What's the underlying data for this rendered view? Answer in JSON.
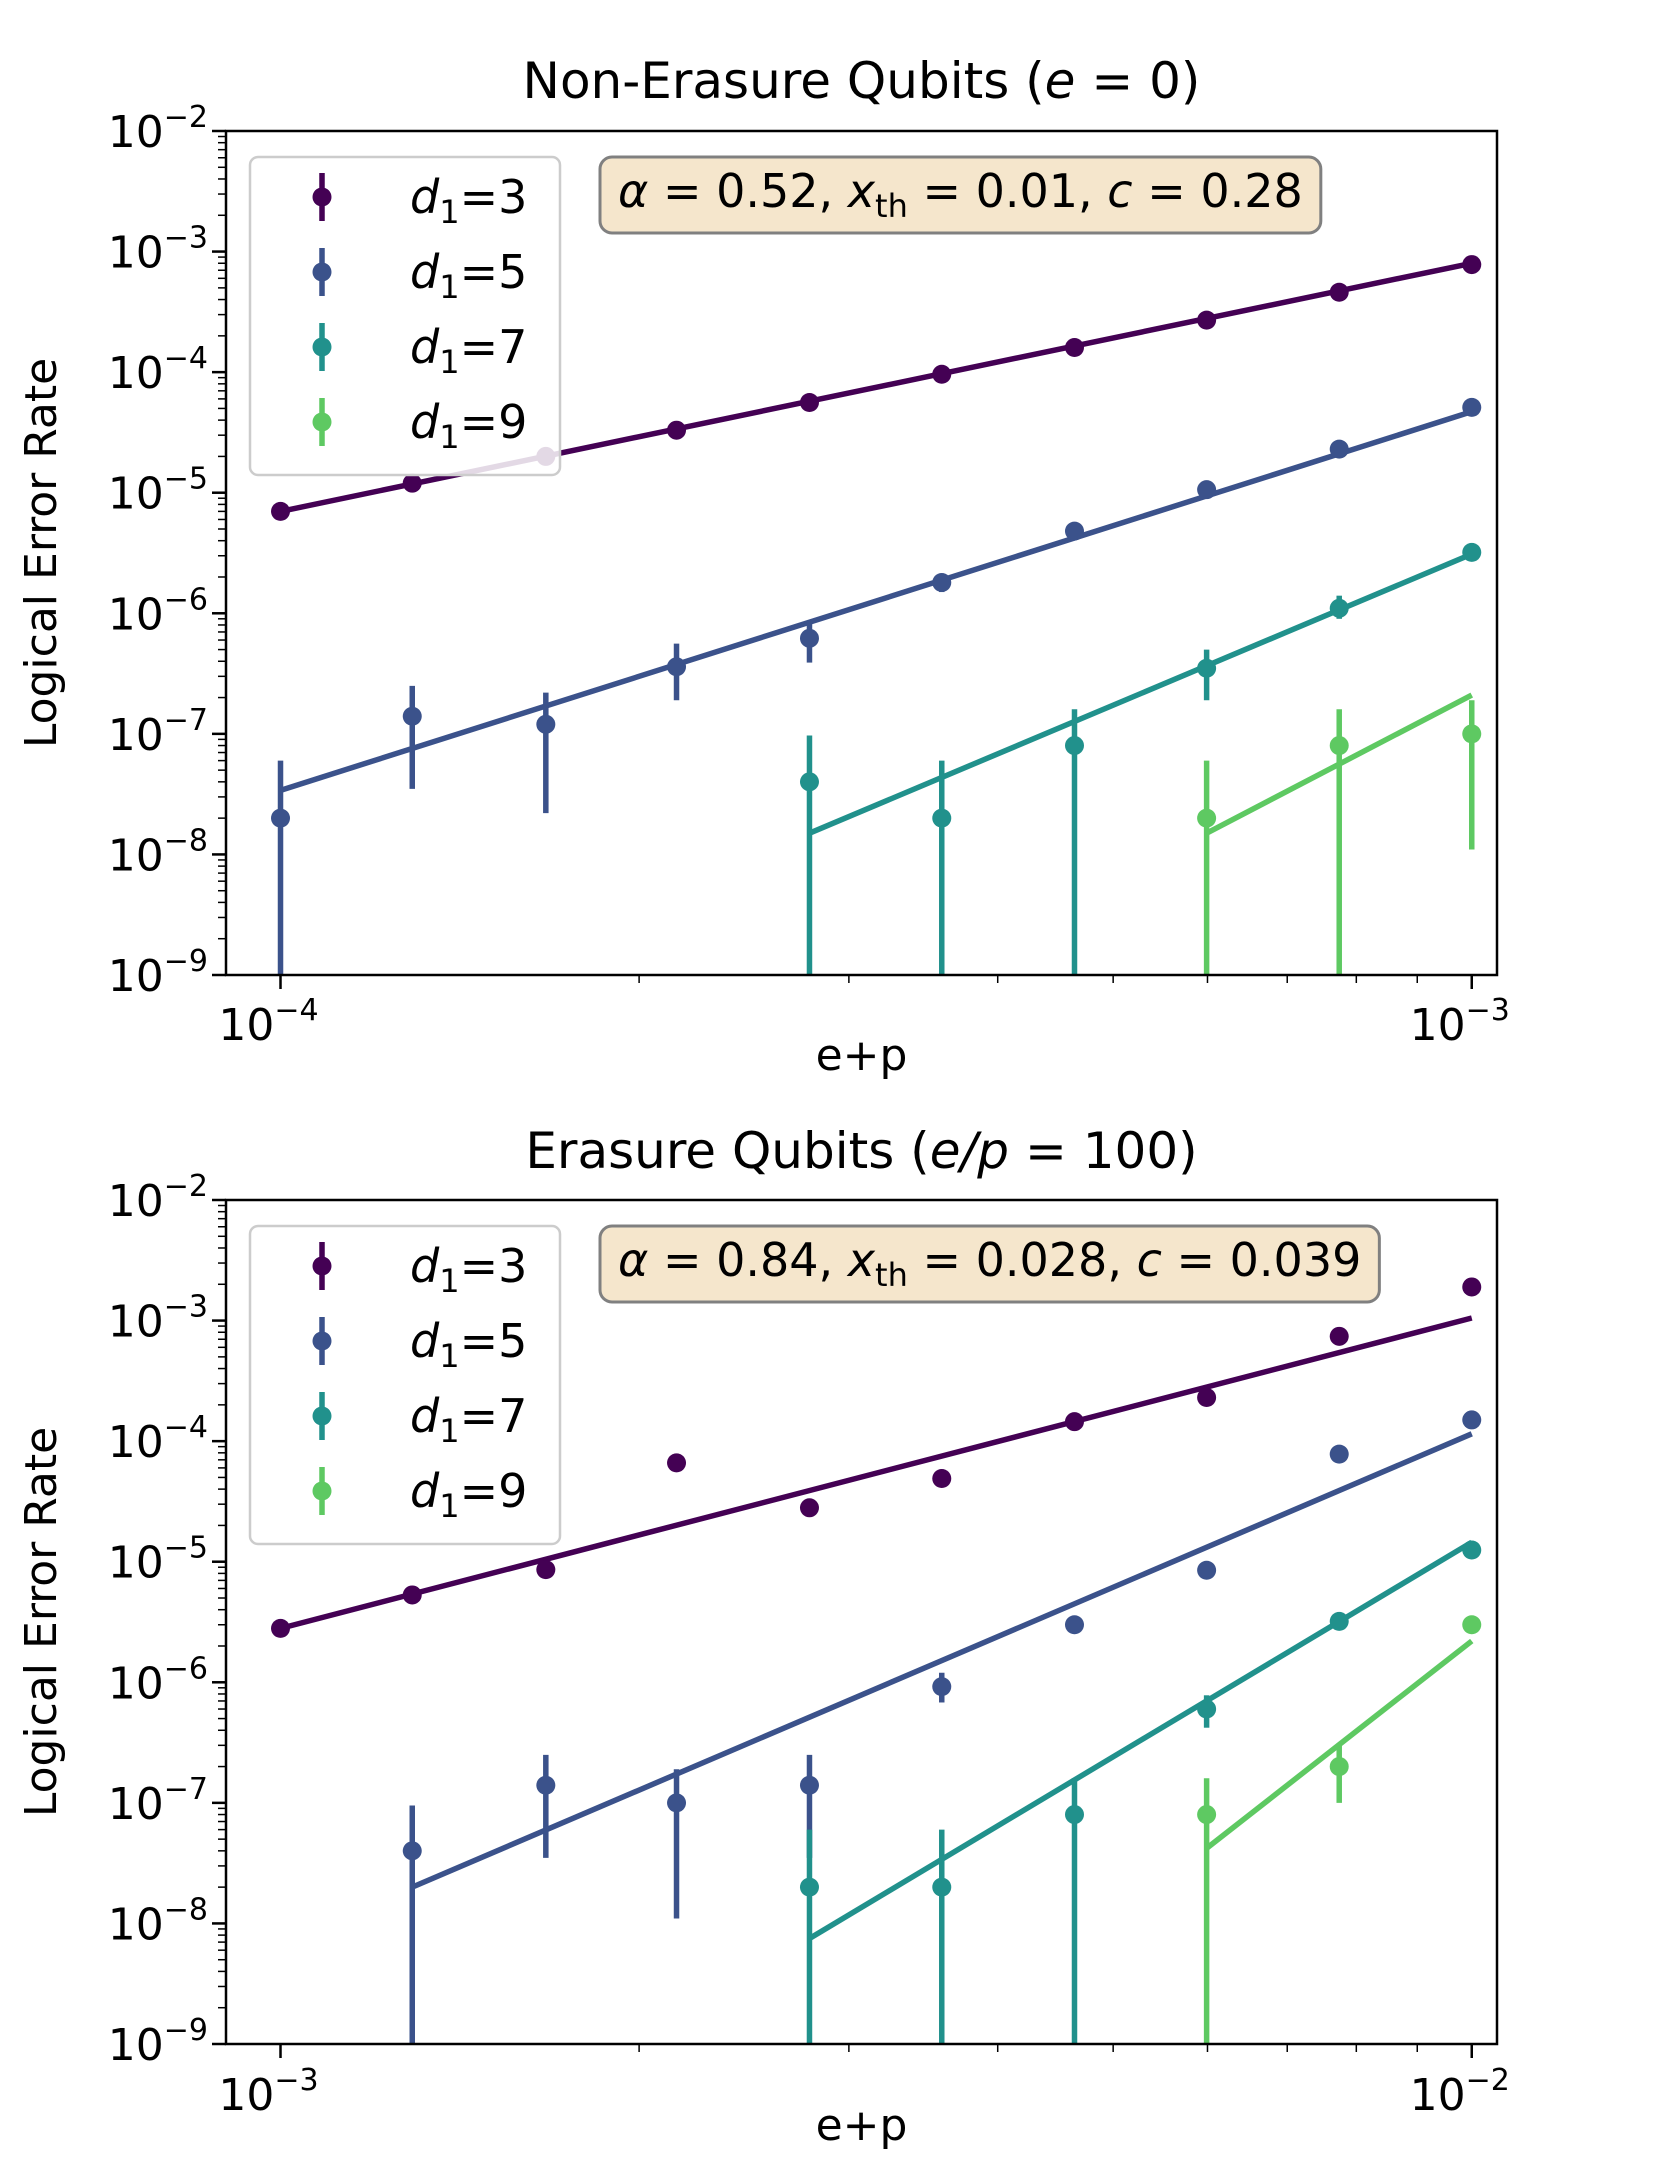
{
  "chart_data": [
    {
      "type": "scatter",
      "title": "Non-Erasure Qubits (e = 0)",
      "title_parts": {
        "prefix": "Non-Erasure Qubits (",
        "var": "e",
        "rel": " = 0",
        "suffix": ")"
      },
      "xlabel": "e+p",
      "ylabel": "Logical Error Rate",
      "xscale": "log",
      "yscale": "log",
      "xlim": [
        9e-05,
        0.00105
      ],
      "ylim": [
        1e-09,
        0.01
      ],
      "xticks": [
        {
          "base": "10",
          "exp": "−4",
          "value": 0.0001
        },
        {
          "base": "10",
          "exp": "−3",
          "value": 0.001
        }
      ],
      "yticks": [
        {
          "base": "10",
          "exp": "−9",
          "value": 1e-09
        },
        {
          "base": "10",
          "exp": "−8",
          "value": 1e-08
        },
        {
          "base": "10",
          "exp": "−7",
          "value": 1e-07
        },
        {
          "base": "10",
          "exp": "−6",
          "value": 1e-06
        },
        {
          "base": "10",
          "exp": "−5",
          "value": 1e-05
        },
        {
          "base": "10",
          "exp": "−4",
          "value": 0.0001
        },
        {
          "base": "10",
          "exp": "−3",
          "value": 0.001
        },
        {
          "base": "10",
          "exp": "−2",
          "value": 0.01
        }
      ],
      "annotation": {
        "alpha": "0.52",
        "xth": "0.01",
        "c": "0.28"
      },
      "legend_position": "upper-left",
      "series": [
        {
          "name": "d1=3",
          "d": "3",
          "color": "#440154",
          "points": [
            {
              "x": 0.0001,
              "y": 7e-06
            },
            {
              "x": 0.000129,
              "y": 1.2e-05
            },
            {
              "x": 0.000167,
              "y": 2e-05
            },
            {
              "x": 0.000215,
              "y": 3.3e-05
            },
            {
              "x": 0.000278,
              "y": 5.6e-05
            },
            {
              "x": 0.000359,
              "y": 9.6e-05
            },
            {
              "x": 0.000464,
              "y": 0.00016
            },
            {
              "x": 0.000599,
              "y": 0.00027
            },
            {
              "x": 0.000774,
              "y": 0.00046
            },
            {
              "x": 0.001,
              "y": 0.00078
            }
          ],
          "fit": [
            {
              "x": 0.0001,
              "y": 7e-06
            },
            {
              "x": 0.001,
              "y": 0.0008
            }
          ]
        },
        {
          "name": "d1=5",
          "d": "5",
          "color": "#3b528b",
          "points": [
            {
              "x": 0.0001,
              "y": 2e-08,
              "lo": 1e-09,
              "hi": 6e-08
            },
            {
              "x": 0.000129,
              "y": 1.4e-07,
              "lo": 3.5e-08,
              "hi": 2.5e-07
            },
            {
              "x": 0.000167,
              "y": 1.2e-07,
              "lo": 2.2e-08,
              "hi": 2.2e-07
            },
            {
              "x": 0.000215,
              "y": 3.6e-07,
              "lo": 1.9e-07,
              "hi": 5.6e-07
            },
            {
              "x": 0.000278,
              "y": 6.2e-07,
              "lo": 3.9e-07,
              "hi": 8.5e-07
            },
            {
              "x": 0.000359,
              "y": 1.8e-06,
              "lo": 1.5e-06,
              "hi": 2.1e-06
            },
            {
              "x": 0.000464,
              "y": 4.8e-06
            },
            {
              "x": 0.000599,
              "y": 1.06e-05
            },
            {
              "x": 0.000774,
              "y": 2.3e-05
            },
            {
              "x": 0.001,
              "y": 5.1e-05
            }
          ],
          "fit": [
            {
              "x": 0.0001,
              "y": 3.4e-08
            },
            {
              "x": 0.001,
              "y": 4.7e-05
            }
          ]
        },
        {
          "name": "d1=7",
          "d": "7",
          "color": "#21918c",
          "points": [
            {
              "x": 0.000278,
              "y": 4e-08,
              "lo": 1e-09,
              "hi": 9.7e-08
            },
            {
              "x": 0.000359,
              "y": 2e-08,
              "lo": 1e-09,
              "hi": 6e-08
            },
            {
              "x": 0.000464,
              "y": 8e-08,
              "lo": 1e-09,
              "hi": 1.6e-07
            },
            {
              "x": 0.000599,
              "y": 3.5e-07,
              "lo": 1.9e-07,
              "hi": 5e-07
            },
            {
              "x": 0.000774,
              "y": 1.1e-06,
              "lo": 9e-07,
              "hi": 1.4e-06
            },
            {
              "x": 0.001,
              "y": 3.2e-06
            }
          ],
          "fit": [
            {
              "x": 0.000278,
              "y": 1.5e-08
            },
            {
              "x": 0.001,
              "y": 3.1e-06
            }
          ]
        },
        {
          "name": "d1=9",
          "d": "9",
          "color": "#5ec962",
          "points": [
            {
              "x": 0.000599,
              "y": 2e-08,
              "lo": 1e-09,
              "hi": 6e-08
            },
            {
              "x": 0.000774,
              "y": 8e-08,
              "lo": 1e-09,
              "hi": 1.6e-07
            },
            {
              "x": 0.001,
              "y": 1e-07,
              "lo": 1.1e-08,
              "hi": 1.9e-07
            }
          ],
          "fit": [
            {
              "x": 0.000599,
              "y": 1.5e-08
            },
            {
              "x": 0.001,
              "y": 2.1e-07
            }
          ]
        }
      ]
    },
    {
      "type": "scatter",
      "title": "Erasure Qubits (e/p = 100)",
      "title_parts": {
        "prefix": "Erasure Qubits (",
        "var": "e/p",
        "rel": " = 100",
        "suffix": ")"
      },
      "xlabel": "e+p",
      "ylabel": "Logical Error Rate",
      "xscale": "log",
      "yscale": "log",
      "xlim": [
        0.0009,
        0.0105
      ],
      "ylim": [
        1e-09,
        0.01
      ],
      "xticks": [
        {
          "base": "10",
          "exp": "−3",
          "value": 0.001
        },
        {
          "base": "10",
          "exp": "−2",
          "value": 0.01
        }
      ],
      "yticks": [
        {
          "base": "10",
          "exp": "−9",
          "value": 1e-09
        },
        {
          "base": "10",
          "exp": "−8",
          "value": 1e-08
        },
        {
          "base": "10",
          "exp": "−7",
          "value": 1e-07
        },
        {
          "base": "10",
          "exp": "−6",
          "value": 1e-06
        },
        {
          "base": "10",
          "exp": "−5",
          "value": 1e-05
        },
        {
          "base": "10",
          "exp": "−4",
          "value": 0.0001
        },
        {
          "base": "10",
          "exp": "−3",
          "value": 0.001
        },
        {
          "base": "10",
          "exp": "−2",
          "value": 0.01
        }
      ],
      "annotation": {
        "alpha": "0.84",
        "xth": "0.028",
        "c": "0.039"
      },
      "legend_position": "upper-left",
      "series": [
        {
          "name": "d1=3",
          "d": "3",
          "color": "#440154",
          "points": [
            {
              "x": 0.001,
              "y": 2.8e-06
            },
            {
              "x": 0.00129,
              "y": 5.3e-06
            },
            {
              "x": 0.00167,
              "y": 8.6e-06
            },
            {
              "x": 0.00215,
              "y": 6.6e-05
            },
            {
              "x": 0.00278,
              "y": 2.8e-05
            },
            {
              "x": 0.00359,
              "y": 4.9e-05
            },
            {
              "x": 0.00464,
              "y": 0.000145
            },
            {
              "x": 0.00599,
              "y": 0.00023
            },
            {
              "x": 0.00774,
              "y": 0.00074
            },
            {
              "x": 0.01,
              "y": 0.0019
            }
          ],
          "fit": [
            {
              "x": 0.001,
              "y": 2.8e-06
            },
            {
              "x": 0.01,
              "y": 0.00105
            }
          ]
        },
        {
          "name": "d1=5",
          "d": "5",
          "color": "#3b528b",
          "points": [
            {
              "x": 0.00129,
              "y": 4e-08,
              "lo": 1e-09,
              "hi": 9.5e-08
            },
            {
              "x": 0.00167,
              "y": 1.4e-07,
              "lo": 3.5e-08,
              "hi": 2.5e-07
            },
            {
              "x": 0.00215,
              "y": 1e-07,
              "lo": 1.1e-08,
              "hi": 1.9e-07
            },
            {
              "x": 0.00278,
              "y": 1.4e-07,
              "lo": 3.5e-08,
              "hi": 2.5e-07
            },
            {
              "x": 0.00359,
              "y": 9.2e-07,
              "lo": 6.8e-07,
              "hi": 1.2e-06
            },
            {
              "x": 0.00464,
              "y": 3e-06
            },
            {
              "x": 0.00599,
              "y": 8.5e-06
            },
            {
              "x": 0.00774,
              "y": 7.8e-05
            },
            {
              "x": 0.01,
              "y": 0.00015
            }
          ],
          "fit": [
            {
              "x": 0.00129,
              "y": 2e-08
            },
            {
              "x": 0.01,
              "y": 0.000115
            }
          ]
        },
        {
          "name": "d1=7",
          "d": "7",
          "color": "#21918c",
          "points": [
            {
              "x": 0.00278,
              "y": 2e-08,
              "lo": 1e-09,
              "hi": 6e-08
            },
            {
              "x": 0.00359,
              "y": 2e-08,
              "lo": 1e-09,
              "hi": 6e-08
            },
            {
              "x": 0.00464,
              "y": 8e-08,
              "lo": 1e-09,
              "hi": 1.6e-07
            },
            {
              "x": 0.00599,
              "y": 6e-07,
              "lo": 4.2e-07,
              "hi": 7.8e-07
            },
            {
              "x": 0.00774,
              "y": 3.2e-06
            },
            {
              "x": 0.01,
              "y": 1.25e-05
            }
          ],
          "fit": [
            {
              "x": 0.00278,
              "y": 7.5e-09
            },
            {
              "x": 0.01,
              "y": 1.45e-05
            }
          ]
        },
        {
          "name": "d1=9",
          "d": "9",
          "color": "#5ec962",
          "points": [
            {
              "x": 0.00599,
              "y": 8e-08,
              "lo": 1e-09,
              "hi": 1.6e-07
            },
            {
              "x": 0.00774,
              "y": 2e-07,
              "lo": 1e-07,
              "hi": 3e-07
            },
            {
              "x": 0.01,
              "y": 3e-06
            }
          ],
          "fit": [
            {
              "x": 0.00599,
              "y": 4.2e-08
            },
            {
              "x": 0.01,
              "y": 2.2e-06
            }
          ]
        }
      ]
    }
  ]
}
